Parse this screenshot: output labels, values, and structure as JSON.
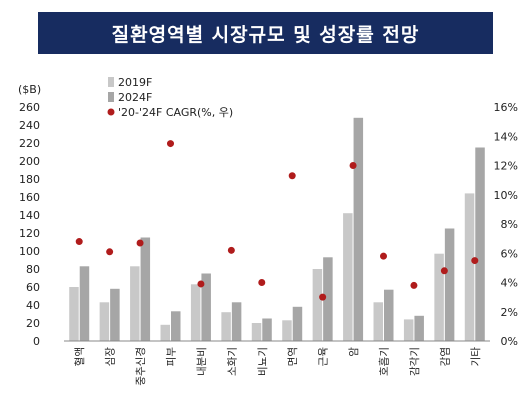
{
  "title": "질환영역별 시장규모 및 성장률 전망",
  "chart_data": {
    "type": "bar",
    "ylabel": "($B)",
    "ylim": [
      0,
      260
    ],
    "yticks": [
      0,
      20,
      40,
      60,
      80,
      100,
      120,
      140,
      160,
      180,
      200,
      220,
      240,
      260
    ],
    "y2lim": [
      0,
      16
    ],
    "y2ticks": [
      "0%",
      "2%",
      "4%",
      "6%",
      "8%",
      "10%",
      "12%",
      "14%",
      "16%"
    ],
    "categories": [
      "혈액",
      "심장",
      "중추신경",
      "피부",
      "내분비",
      "소화기",
      "비뇨기",
      "면역",
      "근육",
      "암",
      "호흡기",
      "감각기",
      "감염",
      "기타"
    ],
    "series": [
      {
        "name": "2019F",
        "type": "bar",
        "color": "#c8c8c8",
        "values": [
          60,
          43,
          83,
          18,
          63,
          32,
          20,
          23,
          80,
          142,
          43,
          24,
          97,
          164
        ]
      },
      {
        "name": "2024F",
        "type": "bar",
        "color": "#a6a6a6",
        "values": [
          83,
          58,
          115,
          33,
          75,
          43,
          25,
          38,
          93,
          248,
          57,
          28,
          125,
          215
        ]
      },
      {
        "name": "'20-'24F CAGR(%, 우)",
        "type": "scatter",
        "axis": "right",
        "color": "#b01c1c",
        "values": [
          6.8,
          6.1,
          6.7,
          13.5,
          3.9,
          6.2,
          4.0,
          11.3,
          3.0,
          12.0,
          5.8,
          3.8,
          4.8,
          5.5
        ]
      }
    ],
    "legend": "top-left",
    "grid": false
  }
}
